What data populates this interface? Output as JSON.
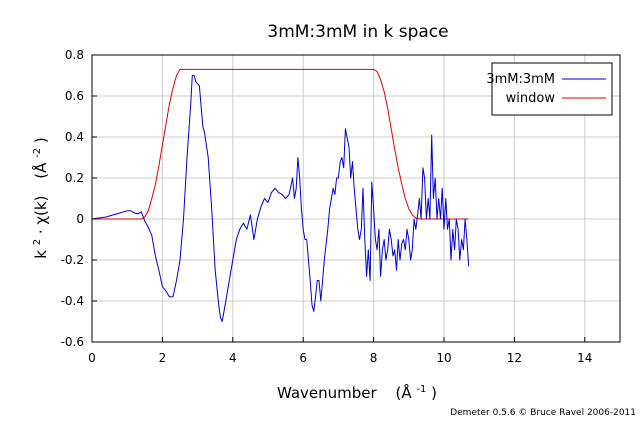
{
  "chart_data": {
    "type": "line",
    "title": "3mM:3mM in k space",
    "xlabel": "Wavenumber (Å⁻¹)",
    "xlabel_parts": {
      "main": "Wavenumber",
      "unit_base": "(Å",
      "unit_sup": "-1",
      "unit_close": ")"
    },
    "ylabel": "k² · χ(k) (Å⁻²)",
    "ylabel_parts": {
      "k": "k",
      "k_sup": "2",
      "chi": " · χ(k)",
      "unit_base": "(Å",
      "unit_sup": "-2",
      "unit_close": ")"
    },
    "xlim": [
      0,
      15
    ],
    "ylim": [
      -0.6,
      0.8
    ],
    "xticks": [
      "0",
      "2",
      "4",
      "6",
      "8",
      "10",
      "12",
      "14"
    ],
    "xtick_values": [
      0,
      2,
      4,
      6,
      8,
      10,
      12,
      14
    ],
    "yticks": [
      "-0.6",
      "-0.4",
      "-0.2",
      "0",
      "0.2",
      "0.4",
      "0.6",
      "0.8"
    ],
    "ytick_values": [
      -0.6,
      -0.4,
      -0.2,
      0,
      0.2,
      0.4,
      0.6,
      0.8
    ],
    "grid": true,
    "legend_position": "top-right",
    "credit": "Demeter 0.5.6 © Bruce Ravel 2006-2011",
    "series": [
      {
        "name": "3mM:3mM",
        "color": "#0000cc",
        "points": [
          [
            0,
            0
          ],
          [
            0.2,
            0.005
          ],
          [
            0.4,
            0.01
          ],
          [
            0.6,
            0.02
          ],
          [
            0.8,
            0.03
          ],
          [
            0.9,
            0.035
          ],
          [
            1.0,
            0.04
          ],
          [
            1.1,
            0.04
          ],
          [
            1.2,
            0.03
          ],
          [
            1.3,
            0.025
          ],
          [
            1.4,
            0.035
          ],
          [
            1.5,
            -0.01
          ],
          [
            1.6,
            -0.04
          ],
          [
            1.7,
            -0.08
          ],
          [
            1.8,
            -0.18
          ],
          [
            1.9,
            -0.25
          ],
          [
            2.0,
            -0.33
          ],
          [
            2.1,
            -0.35
          ],
          [
            2.2,
            -0.38
          ],
          [
            2.3,
            -0.38
          ],
          [
            2.4,
            -0.3
          ],
          [
            2.5,
            -0.2
          ],
          [
            2.6,
            0.0
          ],
          [
            2.7,
            0.3
          ],
          [
            2.8,
            0.55
          ],
          [
            2.85,
            0.7
          ],
          [
            2.9,
            0.7
          ],
          [
            2.95,
            0.67
          ],
          [
            3.05,
            0.65
          ],
          [
            3.1,
            0.55
          ],
          [
            3.15,
            0.45
          ],
          [
            3.2,
            0.42
          ],
          [
            3.3,
            0.3
          ],
          [
            3.4,
            0.05
          ],
          [
            3.5,
            -0.25
          ],
          [
            3.6,
            -0.42
          ],
          [
            3.65,
            -0.48
          ],
          [
            3.7,
            -0.5
          ],
          [
            3.8,
            -0.4
          ],
          [
            3.9,
            -0.3
          ],
          [
            4.0,
            -0.2
          ],
          [
            4.1,
            -0.1
          ],
          [
            4.2,
            -0.05
          ],
          [
            4.3,
            -0.02
          ],
          [
            4.4,
            -0.05
          ],
          [
            4.5,
            0.02
          ],
          [
            4.6,
            -0.1
          ],
          [
            4.7,
            0.0
          ],
          [
            4.8,
            0.06
          ],
          [
            4.9,
            0.1
          ],
          [
            5.0,
            0.08
          ],
          [
            5.1,
            0.13
          ],
          [
            5.2,
            0.15
          ],
          [
            5.3,
            0.13
          ],
          [
            5.4,
            0.12
          ],
          [
            5.5,
            0.1
          ],
          [
            5.6,
            0.12
          ],
          [
            5.7,
            0.2
          ],
          [
            5.75,
            0.1
          ],
          [
            5.8,
            0.15
          ],
          [
            5.85,
            0.3
          ],
          [
            5.9,
            0.2
          ],
          [
            5.95,
            0.05
          ],
          [
            6.0,
            -0.05
          ],
          [
            6.05,
            -0.1
          ],
          [
            6.1,
            -0.1
          ],
          [
            6.2,
            -0.3
          ],
          [
            6.25,
            -0.42
          ],
          [
            6.3,
            -0.45
          ],
          [
            6.35,
            -0.38
          ],
          [
            6.4,
            -0.3
          ],
          [
            6.45,
            -0.3
          ],
          [
            6.5,
            -0.4
          ],
          [
            6.55,
            -0.3
          ],
          [
            6.6,
            -0.2
          ],
          [
            6.7,
            -0.05
          ],
          [
            6.75,
            0.05
          ],
          [
            6.8,
            0.1
          ],
          [
            6.85,
            0.15
          ],
          [
            6.9,
            0.12
          ],
          [
            6.95,
            0.2
          ],
          [
            7.0,
            0.2
          ],
          [
            7.05,
            0.28
          ],
          [
            7.1,
            0.3
          ],
          [
            7.15,
            0.25
          ],
          [
            7.2,
            0.44
          ],
          [
            7.3,
            0.35
          ],
          [
            7.35,
            0.2
          ],
          [
            7.4,
            0.28
          ],
          [
            7.45,
            0.15
          ],
          [
            7.5,
            0.05
          ],
          [
            7.55,
            -0.05
          ],
          [
            7.6,
            -0.1
          ],
          [
            7.65,
            -0.05
          ],
          [
            7.7,
            0.15
          ],
          [
            7.75,
            -0.1
          ],
          [
            7.8,
            -0.28
          ],
          [
            7.85,
            -0.15
          ],
          [
            7.9,
            -0.3
          ],
          [
            7.95,
            0.18
          ],
          [
            8.0,
            0.05
          ],
          [
            8.05,
            -0.1
          ],
          [
            8.1,
            -0.15
          ],
          [
            8.15,
            -0.05
          ],
          [
            8.2,
            -0.28
          ],
          [
            8.25,
            -0.15
          ],
          [
            8.3,
            -0.1
          ],
          [
            8.35,
            -0.2
          ],
          [
            8.4,
            -0.15
          ],
          [
            8.45,
            -0.05
          ],
          [
            8.5,
            -0.1
          ],
          [
            8.55,
            -0.18
          ],
          [
            8.6,
            -0.15
          ],
          [
            8.65,
            -0.25
          ],
          [
            8.7,
            -0.1
          ],
          [
            8.75,
            -0.2
          ],
          [
            8.8,
            -0.12
          ],
          [
            8.85,
            -0.1
          ],
          [
            8.9,
            -0.15
          ],
          [
            8.95,
            -0.05
          ],
          [
            9.0,
            -0.1
          ],
          [
            9.05,
            -0.2
          ],
          [
            9.1,
            -0.15
          ],
          [
            9.15,
            0.0
          ],
          [
            9.2,
            -0.05
          ],
          [
            9.25,
            0.02
          ],
          [
            9.3,
            0.1
          ],
          [
            9.35,
            0.0
          ],
          [
            9.4,
            0.25
          ],
          [
            9.45,
            0.2
          ],
          [
            9.5,
            0.0
          ],
          [
            9.55,
            0.1
          ],
          [
            9.6,
            0.0
          ],
          [
            9.65,
            0.41
          ],
          [
            9.7,
            0.1
          ],
          [
            9.75,
            0.2
          ],
          [
            9.8,
            0.0
          ],
          [
            9.85,
            0.1
          ],
          [
            9.9,
            0.0
          ],
          [
            9.95,
            0.15
          ],
          [
            10.0,
            -0.05
          ],
          [
            10.05,
            0.1
          ],
          [
            10.1,
            -0.05
          ],
          [
            10.15,
            0.0
          ],
          [
            10.2,
            -0.2
          ],
          [
            10.25,
            -0.05
          ],
          [
            10.3,
            -0.15
          ],
          [
            10.35,
            0.0
          ],
          [
            10.4,
            -0.05
          ],
          [
            10.45,
            -0.2
          ],
          [
            10.5,
            -0.1
          ],
          [
            10.55,
            -0.15
          ],
          [
            10.6,
            0.0
          ],
          [
            10.65,
            -0.1
          ],
          [
            10.7,
            -0.23
          ]
        ]
      },
      {
        "name": "window",
        "color": "#dd0000",
        "points": [
          [
            0,
            0
          ],
          [
            1.4,
            0
          ],
          [
            1.5,
            0.01
          ],
          [
            1.6,
            0.04
          ],
          [
            1.7,
            0.1
          ],
          [
            1.8,
            0.17
          ],
          [
            1.9,
            0.26
          ],
          [
            2.0,
            0.36
          ],
          [
            2.1,
            0.46
          ],
          [
            2.2,
            0.56
          ],
          [
            2.3,
            0.64
          ],
          [
            2.4,
            0.7
          ],
          [
            2.5,
            0.73
          ],
          [
            8.0,
            0.73
          ],
          [
            8.1,
            0.72
          ],
          [
            8.2,
            0.68
          ],
          [
            8.3,
            0.62
          ],
          [
            8.4,
            0.54
          ],
          [
            8.5,
            0.44
          ],
          [
            8.6,
            0.34
          ],
          [
            8.7,
            0.25
          ],
          [
            8.8,
            0.17
          ],
          [
            8.9,
            0.1
          ],
          [
            9.0,
            0.05
          ],
          [
            9.1,
            0.02
          ],
          [
            9.2,
            0.005
          ],
          [
            9.3,
            0
          ],
          [
            10.7,
            0
          ]
        ]
      }
    ]
  }
}
